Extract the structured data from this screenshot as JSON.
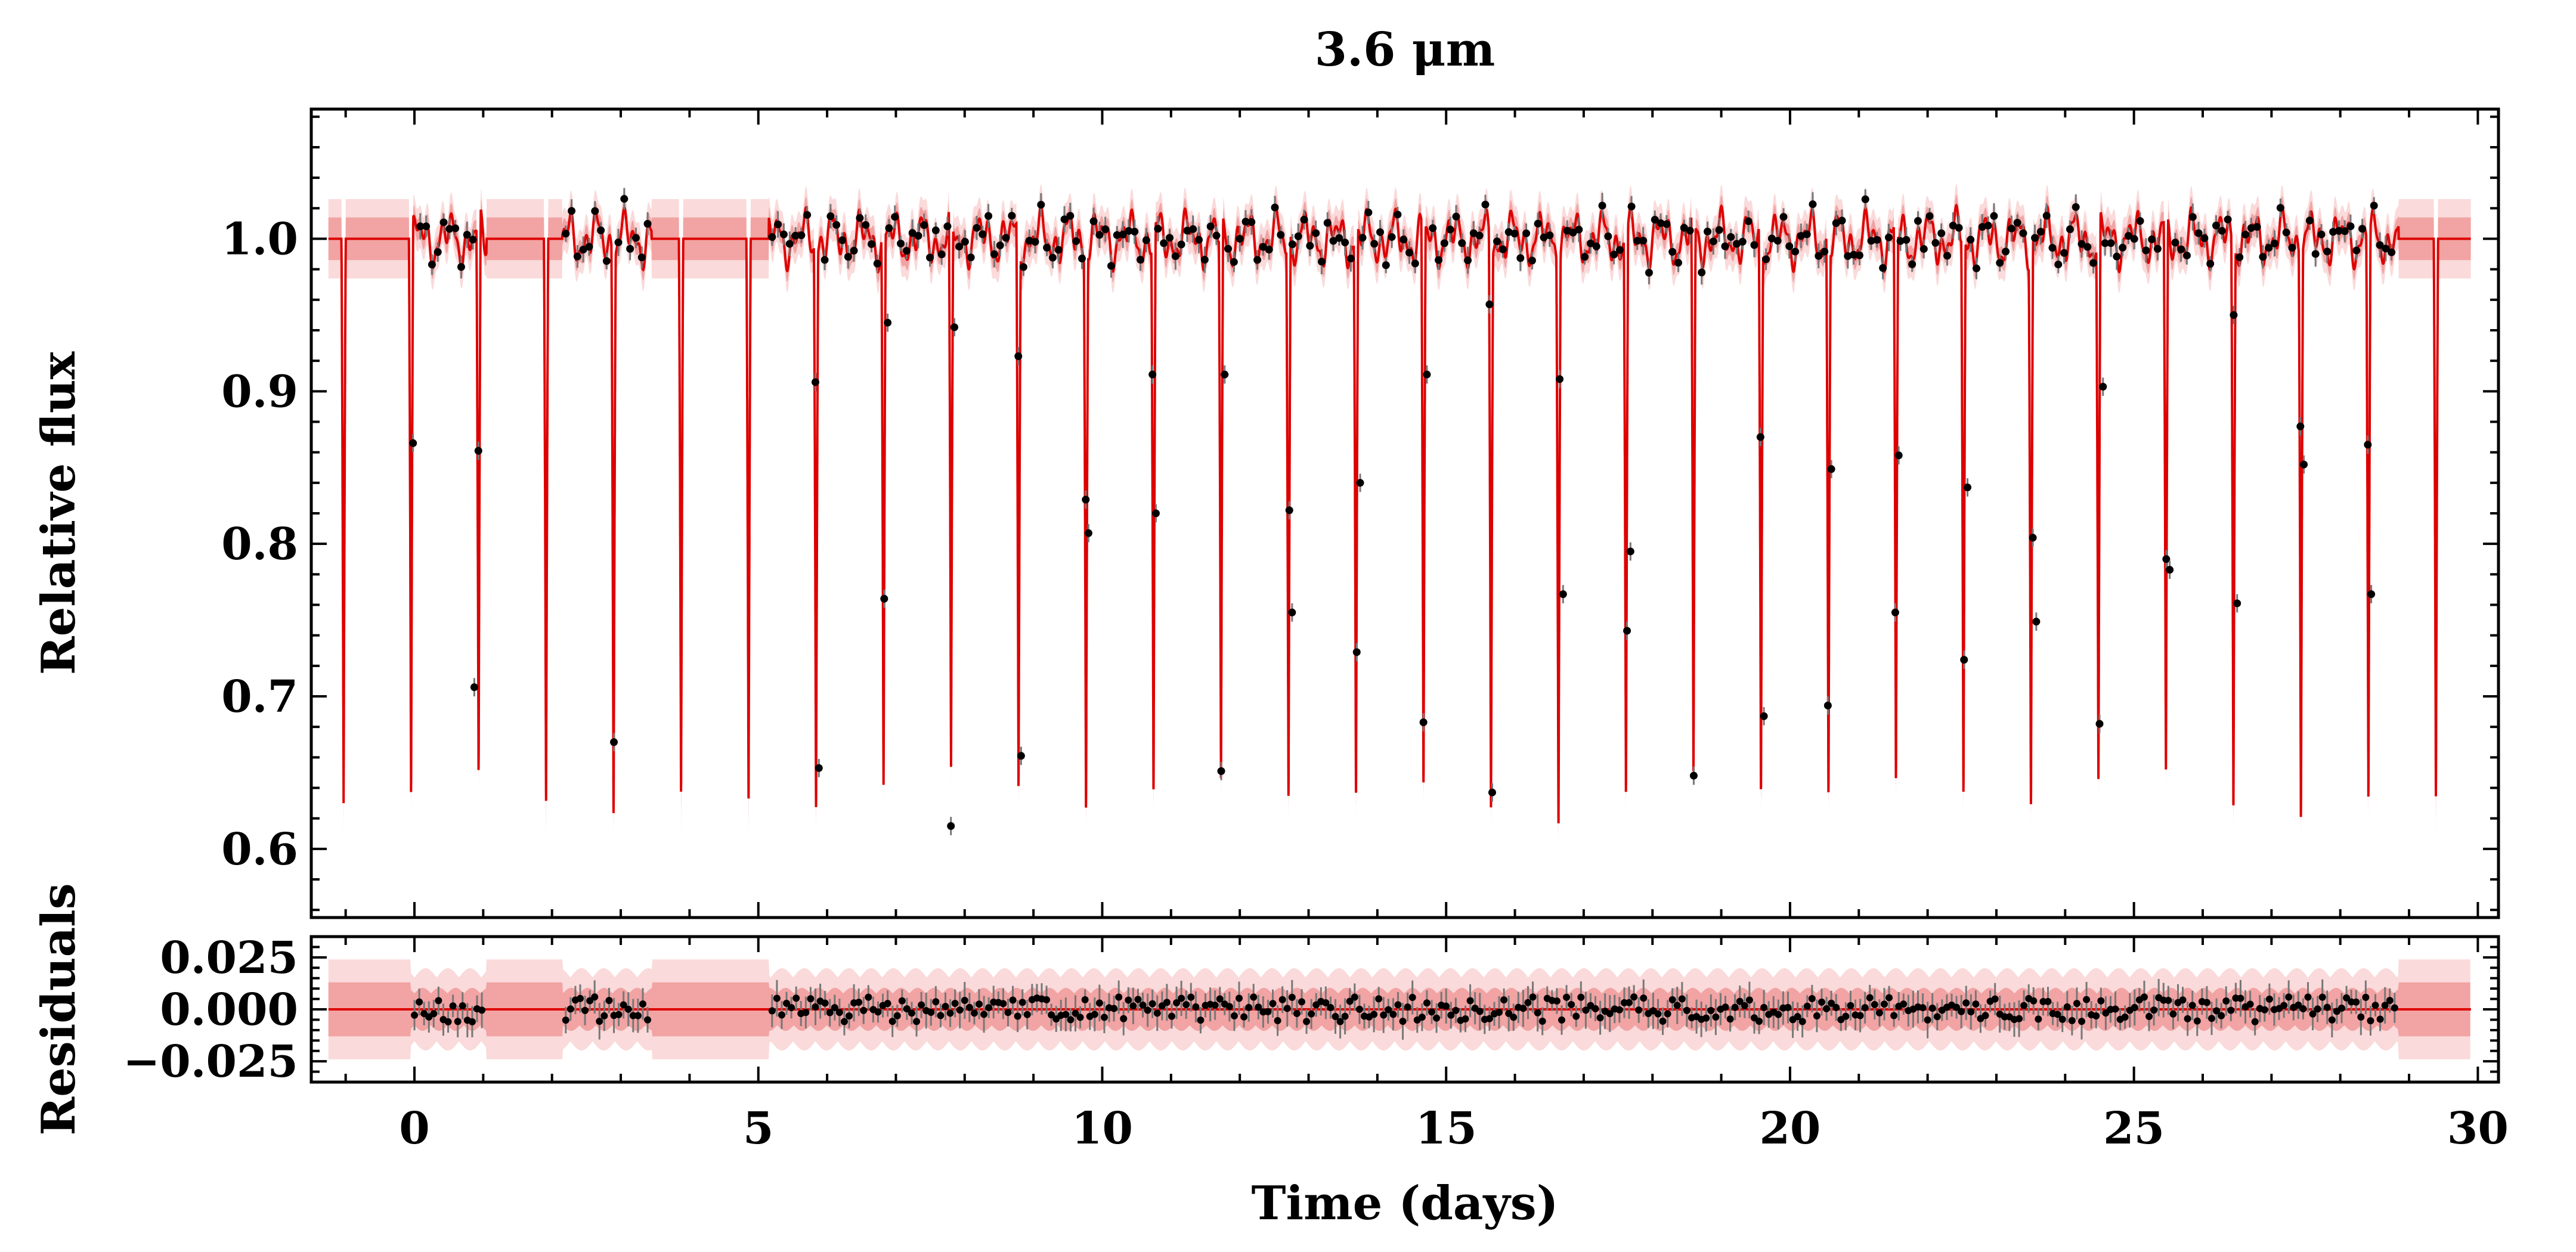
{
  "chart_data": [
    {
      "type": "line",
      "panel": "main",
      "title": "3.6 μm",
      "xlabel": "Time (days)",
      "ylabel": "Relative flux",
      "xlim": [
        -1.5,
        30.3
      ],
      "ylim": [
        0.555,
        1.085
      ],
      "x_ticks": [
        0,
        5,
        10,
        15,
        20,
        25,
        30
      ],
      "y_ticks": [
        0.6,
        0.7,
        0.8,
        0.9,
        1.0
      ],
      "y_tick_labels": [
        "0.6",
        "0.7",
        "0.8",
        "0.9",
        "1.0"
      ],
      "grid": false,
      "series": [
        {
          "name": "model",
          "color": "#dd0000",
          "baseline": 1.0,
          "period_days": 0.9813,
          "first_transit_day": -1.03,
          "min_flux": 0.63,
          "n_transits": 32
        },
        {
          "name": "1-sigma band",
          "color": "#f2a3a3",
          "halfwidth_gap": 0.014,
          "halfwidth_data": 0.007
        },
        {
          "name": "2-sigma band",
          "color": "#fadada",
          "halfwidth_gap": 0.026,
          "halfwidth_data": 0.014
        },
        {
          "name": "data",
          "color": "#000000",
          "marker": "point_with_errorbar",
          "observed_ranges_days": [
            [
              0.0,
              1.0
            ],
            [
              2.2,
              3.4
            ],
            [
              5.2,
              28.8
            ]
          ],
          "in_transit_points": [
            [
              -0.02,
              0.866
            ],
            [
              0.87,
              0.706
            ],
            [
              0.93,
              0.861
            ],
            [
              2.9,
              0.67
            ],
            [
              5.83,
              0.906
            ],
            [
              5.88,
              0.653
            ],
            [
              6.83,
              0.764
            ],
            [
              6.88,
              0.945
            ],
            [
              7.8,
              0.615
            ],
            [
              7.85,
              0.942
            ],
            [
              8.78,
              0.923
            ],
            [
              8.82,
              0.661
            ],
            [
              9.76,
              0.829
            ],
            [
              9.8,
              0.807
            ],
            [
              10.73,
              0.911
            ],
            [
              10.78,
              0.82
            ],
            [
              11.73,
              0.651
            ],
            [
              11.78,
              0.911
            ],
            [
              12.72,
              0.822
            ],
            [
              12.76,
              0.755
            ],
            [
              13.7,
              0.729
            ],
            [
              13.75,
              0.84
            ],
            [
              14.67,
              0.683
            ],
            [
              14.72,
              0.911
            ],
            [
              15.63,
              0.957
            ],
            [
              15.67,
              0.637
            ],
            [
              16.65,
              0.908
            ],
            [
              16.7,
              0.767
            ],
            [
              17.63,
              0.743
            ],
            [
              17.68,
              0.795
            ],
            [
              18.6,
              0.648
            ],
            [
              19.57,
              0.87
            ],
            [
              19.62,
              0.687
            ],
            [
              20.55,
              0.694
            ],
            [
              20.6,
              0.849
            ],
            [
              21.53,
              0.755
            ],
            [
              21.58,
              0.858
            ],
            [
              22.53,
              0.724
            ],
            [
              22.58,
              0.837
            ],
            [
              23.53,
              0.804
            ],
            [
              23.58,
              0.749
            ],
            [
              24.5,
              0.682
            ],
            [
              24.55,
              0.903
            ],
            [
              25.47,
              0.79
            ],
            [
              25.52,
              0.783
            ],
            [
              26.45,
              0.95
            ],
            [
              26.5,
              0.761
            ],
            [
              27.42,
              0.877
            ],
            [
              27.47,
              0.852
            ],
            [
              28.4,
              0.865
            ],
            [
              28.45,
              0.767
            ]
          ]
        }
      ]
    },
    {
      "type": "scatter",
      "panel": "residuals",
      "xlabel": "Time (days)",
      "ylabel": "Residuals",
      "xlim": [
        -1.5,
        30.3
      ],
      "ylim": [
        -0.035,
        0.035
      ],
      "x_ticks": [
        0,
        5,
        10,
        15,
        20,
        25,
        30
      ],
      "x_tick_labels": [
        "0",
        "5",
        "10",
        "15",
        "20",
        "25",
        "30"
      ],
      "y_ticks": [
        -0.025,
        0.0,
        0.025
      ],
      "y_tick_labels": [
        "−0.025",
        "0.000",
        "0.025"
      ],
      "zero_line_color": "#dd0000",
      "typical_scatter": 0.006,
      "band_halfwidth_gap": 0.024,
      "band_halfwidth_data": 0.018
    }
  ]
}
